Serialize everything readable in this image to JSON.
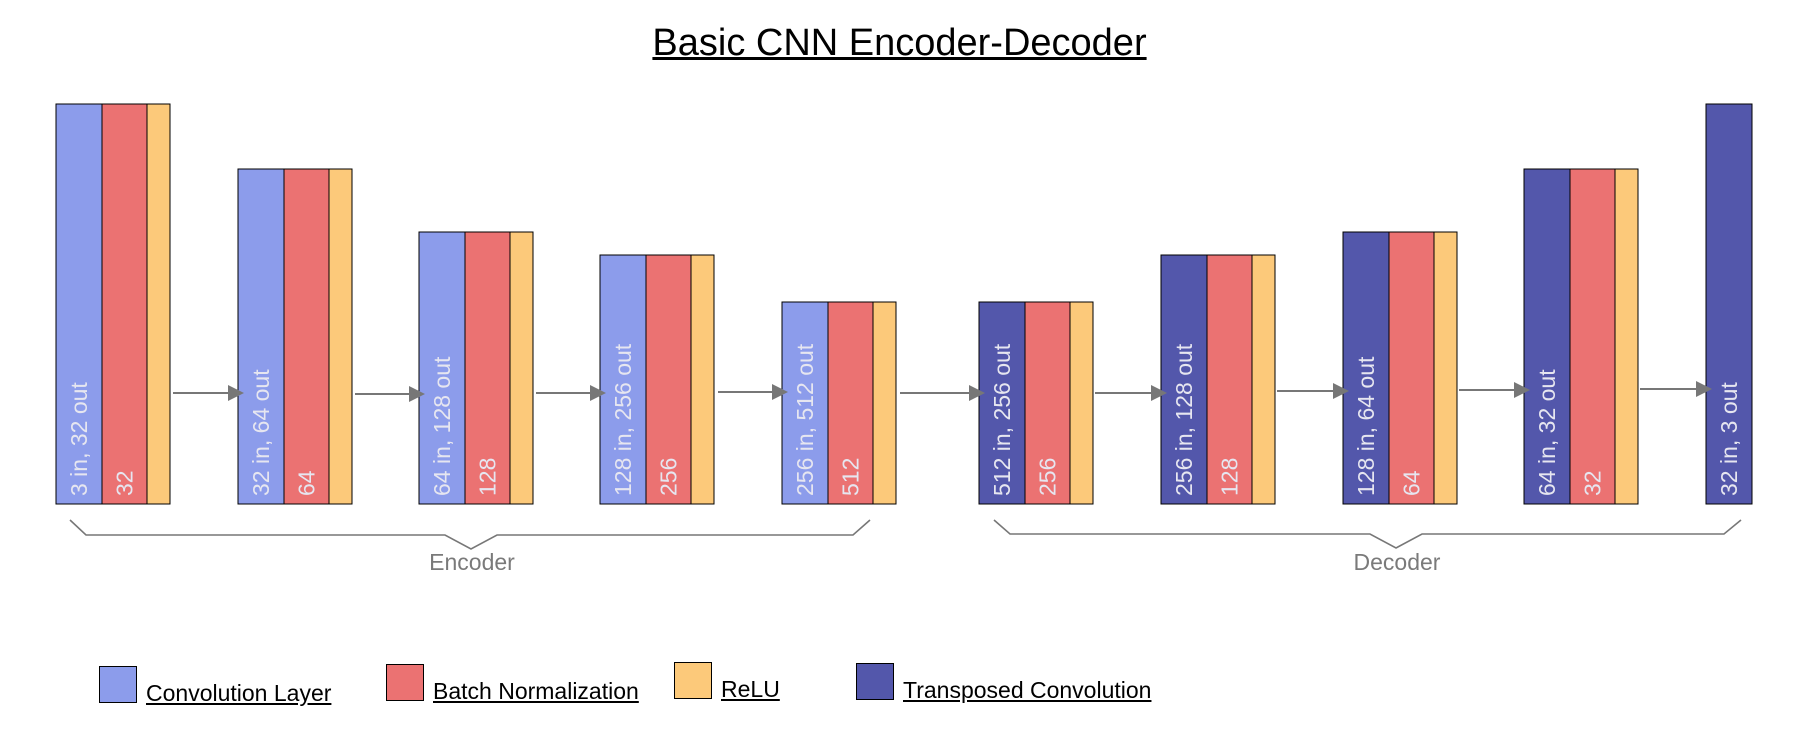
{
  "title": "Basic CNN Encoder-Decoder",
  "colors": {
    "conv": "#8c9ceb",
    "batchnorm": "#eb7272",
    "relu": "#fcc97a",
    "transposed": "#5357ab",
    "text_light": "#e6e6f0",
    "arrow": "#777777",
    "group_text": "#7a7a7a"
  },
  "encoder_blocks": [
    {
      "main": "3 in, 32 out",
      "bn": "32"
    },
    {
      "main": "32 in, 64 out",
      "bn": "64"
    },
    {
      "main": "64 in, 128 out",
      "bn": "128"
    },
    {
      "main": "128 in, 256 out",
      "bn": "256"
    },
    {
      "main": "256 in, 512 out",
      "bn": "512"
    }
  ],
  "decoder_blocks": [
    {
      "main": "512 in, 256 out",
      "bn": "256"
    },
    {
      "main": "256 in, 128 out",
      "bn": "128"
    },
    {
      "main": "128 in, 64 out",
      "bn": "64"
    },
    {
      "main": "64 in, 32 out",
      "bn": "32"
    },
    {
      "main": "32 in, 3 out",
      "bn": ""
    }
  ],
  "groups": {
    "encoder": "Encoder",
    "decoder": "Decoder"
  },
  "legend": [
    {
      "label": "Convolution Layer",
      "color_key": "conv"
    },
    {
      "label": "Batch Normalization",
      "color_key": "batchnorm"
    },
    {
      "label": "ReLU",
      "color_key": "relu"
    },
    {
      "label": "Transposed Convolution",
      "color_key": "transposed"
    }
  ]
}
